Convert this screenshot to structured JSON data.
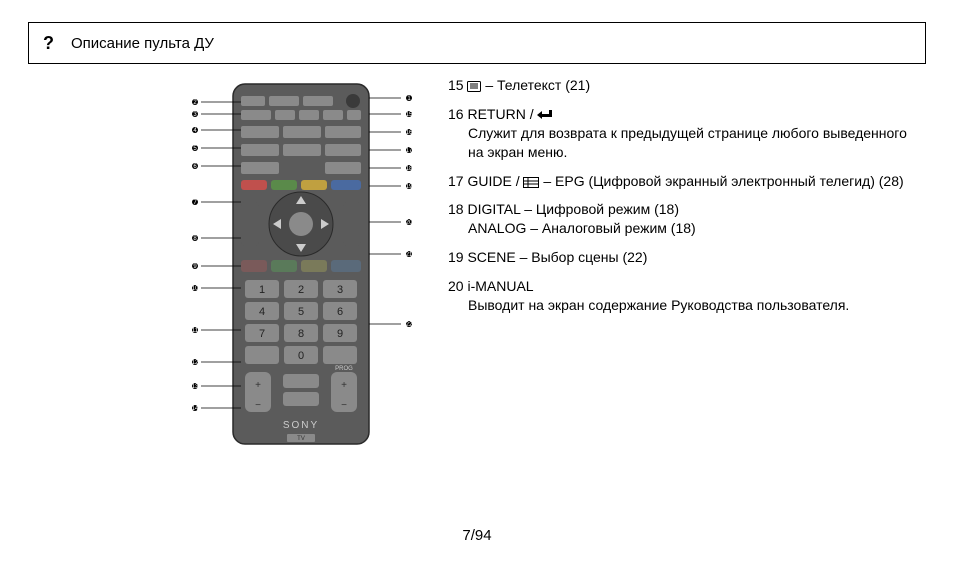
{
  "title": {
    "icon": "?",
    "text": "Описание пульта ДУ"
  },
  "remote": {
    "body_color": "#5b5b5b",
    "body_dark": "#3a3a3a",
    "outline": "#2a2a2a",
    "button_color": "#8a8a8a",
    "button_dark": "#4a4a4a",
    "label_color": "#d0d0d0",
    "brand": "SONY",
    "brand_color": "#cccccc",
    "tv_label": "TV",
    "keypad": [
      "1",
      "2",
      "3",
      "4",
      "5",
      "6",
      "7",
      "8",
      "9",
      "",
      "0",
      ""
    ],
    "prog_label": "PROG",
    "leader_color": "#000000",
    "callout_dot_r": 3,
    "left_callouts": [
      "2",
      "3",
      "4",
      "5",
      "6",
      "7",
      "8",
      "9",
      "10",
      "11",
      "12",
      "13",
      "14"
    ],
    "right_callouts": [
      "1",
      "15",
      "16",
      "17",
      "18",
      "19",
      "20",
      "21",
      "22"
    ],
    "left_y": [
      28,
      40,
      56,
      74,
      92,
      128,
      164,
      192,
      214,
      256,
      288,
      312,
      334
    ],
    "right_y": [
      24,
      40,
      58,
      76,
      94,
      112,
      148,
      180,
      250
    ],
    "left_x_label": 4,
    "left_x_line_end": 44,
    "right_x_label": 226,
    "right_x_line_start": 192
  },
  "descriptions": [
    {
      "num": "15",
      "icon": "teletext",
      "head": " – Телетекст (21)",
      "body": null
    },
    {
      "num": "16",
      "head": " RETURN / ",
      "icon_after": "return",
      "body": "Служит для возврата к предыдущей странице любого выведенного на экран меню."
    },
    {
      "num": "17",
      "head": " GUIDE / ",
      "icon_after": "epg",
      "tail": " – EPG (Цифровой экранный электронный телегид) (28)",
      "body": null
    },
    {
      "num": "18",
      "head": " DIGITAL – Цифровой режим (18)",
      "body_plain": "ANALOG – Аналоговый режим (18)"
    },
    {
      "num": "19",
      "head": " SCENE – Выбор сцены (22)",
      "body": null
    },
    {
      "num": "20",
      "head": " i-MANUAL",
      "body": "Выводит на экран содержание Руководства пользователя."
    }
  ],
  "icons": {
    "teletext_lines": 4,
    "return_arrow": true,
    "epg_grid": true
  },
  "page": "7/94"
}
